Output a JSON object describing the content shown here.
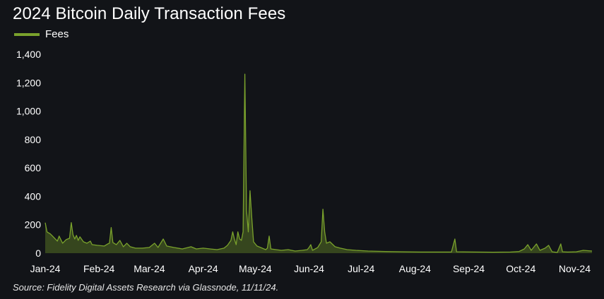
{
  "chart_data": {
    "type": "area",
    "title": "2024 Bitcoin Daily Transaction Fees",
    "xlabel": "",
    "ylabel": "",
    "ylim": [
      0,
      1400
    ],
    "yticks": [
      0,
      200,
      400,
      600,
      800,
      1000,
      1200,
      1400
    ],
    "ytick_labels": [
      "0",
      "200",
      "400",
      "600",
      "800",
      "1,000",
      "1,200",
      "1,400"
    ],
    "xtick_labels": [
      "Jan-24",
      "Feb-24",
      "Mar-24",
      "Apr-24",
      "May-24",
      "Jun-24",
      "Jul-24",
      "Aug-24",
      "Sep-24",
      "Oct-24",
      "Nov-24"
    ],
    "xtick_dates": [
      "2024-01-01",
      "2024-02-01",
      "2024-03-01",
      "2024-04-01",
      "2024-05-01",
      "2024-06-01",
      "2024-07-01",
      "2024-08-01",
      "2024-09-01",
      "2024-10-01",
      "2024-11-01"
    ],
    "xlim": [
      "2024-01-01",
      "2024-11-11"
    ],
    "grid": false,
    "legend": "top-left",
    "series": [
      {
        "name": "Fees",
        "color": "#7aa22c",
        "points": [
          [
            "2024-01-01",
            215
          ],
          [
            "2024-01-02",
            150
          ],
          [
            "2024-01-04",
            135
          ],
          [
            "2024-01-06",
            110
          ],
          [
            "2024-01-08",
            85
          ],
          [
            "2024-01-09",
            120
          ],
          [
            "2024-01-11",
            70
          ],
          [
            "2024-01-13",
            95
          ],
          [
            "2024-01-15",
            105
          ],
          [
            "2024-01-16",
            215
          ],
          [
            "2024-01-17",
            130
          ],
          [
            "2024-01-18",
            100
          ],
          [
            "2024-01-19",
            125
          ],
          [
            "2024-01-20",
            90
          ],
          [
            "2024-01-21",
            115
          ],
          [
            "2024-01-23",
            80
          ],
          [
            "2024-01-25",
            70
          ],
          [
            "2024-01-27",
            85
          ],
          [
            "2024-01-28",
            60
          ],
          [
            "2024-01-31",
            55
          ],
          [
            "2024-02-04",
            50
          ],
          [
            "2024-02-06",
            65
          ],
          [
            "2024-02-07",
            70
          ],
          [
            "2024-02-08",
            180
          ],
          [
            "2024-02-09",
            75
          ],
          [
            "2024-02-11",
            60
          ],
          [
            "2024-02-13",
            90
          ],
          [
            "2024-02-15",
            45
          ],
          [
            "2024-02-17",
            70
          ],
          [
            "2024-02-19",
            45
          ],
          [
            "2024-02-22",
            35
          ],
          [
            "2024-02-26",
            35
          ],
          [
            "2024-03-01",
            40
          ],
          [
            "2024-03-04",
            70
          ],
          [
            "2024-03-06",
            40
          ],
          [
            "2024-03-09",
            100
          ],
          [
            "2024-03-11",
            50
          ],
          [
            "2024-03-15",
            40
          ],
          [
            "2024-03-20",
            30
          ],
          [
            "2024-03-25",
            45
          ],
          [
            "2024-03-28",
            30
          ],
          [
            "2024-04-01",
            35
          ],
          [
            "2024-04-05",
            30
          ],
          [
            "2024-04-09",
            25
          ],
          [
            "2024-04-13",
            35
          ],
          [
            "2024-04-15",
            55
          ],
          [
            "2024-04-17",
            90
          ],
          [
            "2024-04-18",
            150
          ],
          [
            "2024-04-19",
            100
          ],
          [
            "2024-04-20",
            60
          ],
          [
            "2024-04-21",
            150
          ],
          [
            "2024-04-22",
            100
          ],
          [
            "2024-04-23",
            90
          ],
          [
            "2024-04-24",
            150
          ],
          [
            "2024-04-25",
            1260
          ],
          [
            "2024-04-26",
            300
          ],
          [
            "2024-04-27",
            150
          ],
          [
            "2024-04-28",
            440
          ],
          [
            "2024-04-29",
            250
          ],
          [
            "2024-04-30",
            80
          ],
          [
            "2024-05-02",
            50
          ],
          [
            "2024-05-04",
            40
          ],
          [
            "2024-05-07",
            25
          ],
          [
            "2024-05-08",
            35
          ],
          [
            "2024-05-09",
            120
          ],
          [
            "2024-05-10",
            30
          ],
          [
            "2024-05-13",
            25
          ],
          [
            "2024-05-16",
            20
          ],
          [
            "2024-05-20",
            25
          ],
          [
            "2024-05-24",
            15
          ],
          [
            "2024-05-28",
            20
          ],
          [
            "2024-05-31",
            25
          ],
          [
            "2024-06-01",
            40
          ],
          [
            "2024-06-02",
            60
          ],
          [
            "2024-06-03",
            20
          ],
          [
            "2024-06-06",
            40
          ],
          [
            "2024-06-08",
            80
          ],
          [
            "2024-06-09",
            310
          ],
          [
            "2024-06-10",
            150
          ],
          [
            "2024-06-11",
            70
          ],
          [
            "2024-06-13",
            80
          ],
          [
            "2024-06-16",
            45
          ],
          [
            "2024-06-19",
            35
          ],
          [
            "2024-06-23",
            25
          ],
          [
            "2024-06-28",
            20
          ],
          [
            "2024-07-05",
            15
          ],
          [
            "2024-07-15",
            12
          ],
          [
            "2024-07-25",
            10
          ],
          [
            "2024-08-05",
            8
          ],
          [
            "2024-08-15",
            8
          ],
          [
            "2024-08-22",
            8
          ],
          [
            "2024-08-24",
            100
          ],
          [
            "2024-08-25",
            10
          ],
          [
            "2024-09-05",
            8
          ],
          [
            "2024-09-15",
            7
          ],
          [
            "2024-09-25",
            8
          ],
          [
            "2024-09-30",
            12
          ],
          [
            "2024-10-03",
            30
          ],
          [
            "2024-10-05",
            60
          ],
          [
            "2024-10-07",
            20
          ],
          [
            "2024-10-09",
            50
          ],
          [
            "2024-10-10",
            65
          ],
          [
            "2024-10-12",
            20
          ],
          [
            "2024-10-15",
            35
          ],
          [
            "2024-10-17",
            55
          ],
          [
            "2024-10-19",
            10
          ],
          [
            "2024-10-22",
            5
          ],
          [
            "2024-10-24",
            65
          ],
          [
            "2024-10-25",
            10
          ],
          [
            "2024-10-28",
            8
          ],
          [
            "2024-11-02",
            10
          ],
          [
            "2024-11-06",
            20
          ],
          [
            "2024-11-11",
            15
          ]
        ]
      }
    ],
    "source": "Source: Fidelity Digital Assets Research via Glassnode, 11/11/24."
  }
}
